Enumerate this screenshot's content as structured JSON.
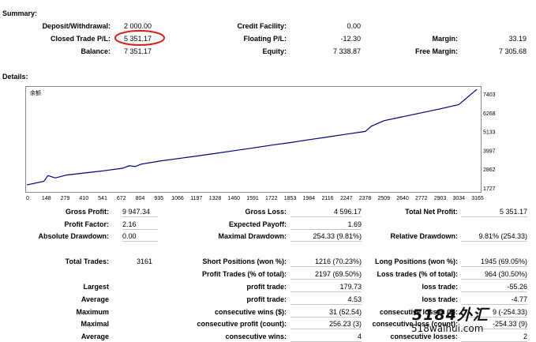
{
  "summary": {
    "title": "Summary:",
    "rows": [
      [
        {
          "label": "Deposit/Withdrawal:",
          "value": "2 000.00"
        },
        {
          "label": "Credit Facility:",
          "value": "0.00"
        },
        {
          "label": "",
          "value": ""
        }
      ],
      [
        {
          "label": "Closed Trade P/L:",
          "value": "5 351.17"
        },
        {
          "label": "Floating P/L:",
          "value": "-12.30"
        },
        {
          "label": "Margin:",
          "value": "33.19"
        }
      ],
      [
        {
          "label": "Balance:",
          "value": "7 351.17"
        },
        {
          "label": "Equity:",
          "value": "7 338.87"
        },
        {
          "label": "Free Margin:",
          "value": "7 305.68"
        }
      ]
    ]
  },
  "details": {
    "title": "Details:"
  },
  "chart_data": {
    "type": "line",
    "legend_label": "余额",
    "x_ticks": [
      "0",
      "148",
      "279",
      "410",
      "541",
      "672",
      "804",
      "935",
      "1066",
      "1197",
      "1328",
      "1460",
      "1591",
      "1722",
      "1853",
      "1984",
      "2116",
      "2247",
      "2378",
      "2509",
      "2640",
      "2772",
      "2903",
      "3034",
      "3165"
    ],
    "y_ticks": [
      "7403",
      "6268",
      "5133",
      "3997",
      "2862",
      "1727"
    ],
    "xlim": [
      0,
      3161
    ],
    "ylim": [
      1727,
      7403
    ],
    "series": [
      {
        "color": "#000080",
        "x": [
          0,
          120,
          148,
          200,
          279,
          410,
          541,
          672,
          720,
          760,
          804,
          935,
          1066,
          1197,
          1328,
          1460,
          1591,
          1722,
          1853,
          1984,
          2116,
          2247,
          2378,
          2420,
          2509,
          2640,
          2772,
          2903,
          3034,
          3161
        ],
        "y": [
          2030,
          2230,
          2550,
          2420,
          2580,
          2700,
          2820,
          2960,
          3100,
          3050,
          3190,
          3360,
          3500,
          3640,
          3790,
          3940,
          4090,
          4250,
          4390,
          4550,
          4700,
          4860,
          5010,
          5300,
          5610,
          5830,
          6050,
          6270,
          6500,
          7351.17
        ]
      }
    ]
  },
  "stats": {
    "gross_profit": {
      "label": "Gross Profit:",
      "value": "9 947.34"
    },
    "gross_loss": {
      "label": "Gross Loss:",
      "value": "4 596.17"
    },
    "total_net_profit": {
      "label": "Total Net Profit:",
      "value": "5 351.17"
    },
    "profit_factor": {
      "label": "Profit Factor:",
      "value": "2.16"
    },
    "expected_payoff": {
      "label": "Expected Payoff:",
      "value": "1.69"
    },
    "absolute_drawdown": {
      "label": "Absolute Drawdown:",
      "value": "0.00"
    },
    "maximal_drawdown": {
      "label": "Maximal Drawdown:",
      "value": "254.33 (9.81%)"
    },
    "relative_drawdown": {
      "label": "Relative Drawdown:",
      "value": "9.81% (254.33)"
    },
    "total_trades": {
      "label": "Total Trades:",
      "value": "3161"
    },
    "short_positions": {
      "label": "Short Positions (won %):",
      "value": "1216 (70.23%)"
    },
    "long_positions": {
      "label": "Long Positions (won %):",
      "value": "1945 (69.05%)"
    },
    "profit_trades": {
      "label": "Profit Trades (% of total):",
      "value": "2197 (69.50%)"
    },
    "loss_trades": {
      "label": "Loss trades (% of total):",
      "value": "964 (30.50%)"
    },
    "rows": [
      {
        "left": "Largest",
        "mid": "profit trade:",
        "mid_val": "179.73",
        "right": "loss trade:",
        "right_val": "-55.26"
      },
      {
        "left": "Average",
        "mid": "profit trade:",
        "mid_val": "4.53",
        "right": "loss trade:",
        "right_val": "-4.77"
      },
      {
        "left": "Maximum",
        "mid": "consecutive wins ($):",
        "mid_val": "31 (52.54)",
        "right": "consecutive losses ($):",
        "right_val": "9 (-254.33)"
      },
      {
        "left": "Maximal",
        "mid": "consecutive profit (count):",
        "mid_val": "256.23 (3)",
        "right": "consecutive loss (count):",
        "right_val": "-254.33 (9)"
      },
      {
        "left": "Average",
        "mid": "consecutive wins:",
        "mid_val": "4",
        "right": "consecutive losses:",
        "right_val": "2"
      }
    ]
  },
  "watermark": {
    "line1": "5184外汇",
    "line2": "518waihui.com"
  }
}
